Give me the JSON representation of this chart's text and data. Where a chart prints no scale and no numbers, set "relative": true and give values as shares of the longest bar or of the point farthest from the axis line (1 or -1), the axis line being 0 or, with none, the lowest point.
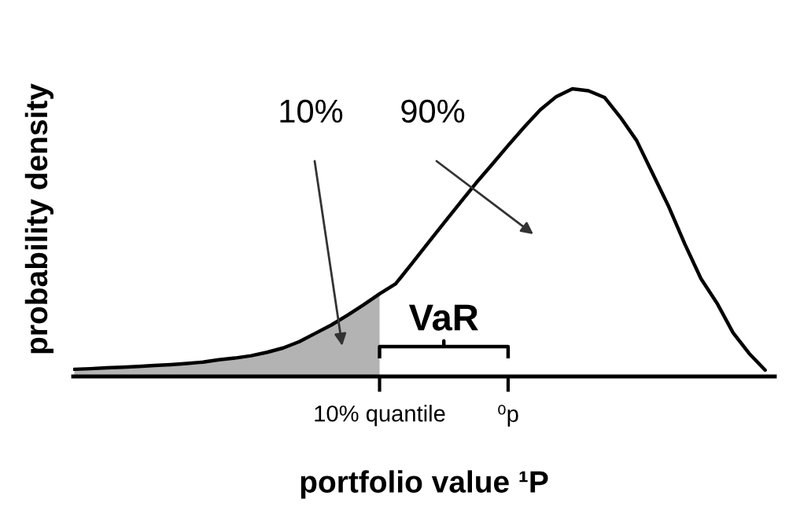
{
  "chart_data": {
    "type": "line",
    "relative": true,
    "xlabel": "portfolio value ¹P",
    "ylabel": "probability density",
    "categories": [
      null,
      null,
      null,
      null,
      null,
      null,
      null,
      null,
      null,
      null,
      null,
      null,
      null,
      null,
      null,
      null,
      null,
      null,
      null,
      "10% quantile",
      null,
      null,
      null,
      null,
      null,
      null,
      null,
      "⁰p",
      null,
      null,
      null,
      null,
      null,
      null,
      null,
      null,
      null,
      null,
      null,
      null,
      null,
      null,
      null,
      null
    ],
    "tick_labels": "x",
    "grid": false,
    "series": [
      {
        "type": "area",
        "color": "#b3b3b3",
        "values": [
          0.025,
          0.027,
          0.03,
          0.032,
          0.035,
          0.038,
          0.041,
          0.045,
          0.05,
          0.058,
          0.064,
          0.072,
          0.084,
          0.099,
          0.121,
          0.15,
          0.179,
          0.213,
          0.249,
          0.287,
          null,
          null,
          null,
          null,
          null,
          null,
          null,
          null,
          null,
          null,
          null,
          null,
          null,
          null,
          null,
          null,
          null,
          null,
          null,
          null,
          null,
          null,
          null,
          null
        ]
      },
      {
        "color": "#000000",
        "values": [
          0.025,
          0.027,
          0.03,
          0.032,
          0.035,
          0.038,
          0.041,
          0.045,
          0.05,
          0.058,
          0.064,
          0.072,
          0.084,
          0.099,
          0.121,
          0.15,
          0.179,
          0.213,
          0.249,
          0.287,
          0.322,
          0.392,
          0.463,
          0.533,
          0.603,
          0.672,
          0.737,
          0.803,
          0.867,
          0.927,
          0.973,
          1,
          0.993,
          0.97,
          0.9,
          0.82,
          0.705,
          0.59,
          0.46,
          0.34,
          0.255,
          0.152,
          0.08,
          0.022
        ]
      }
    ],
    "annotations": [
      "10%",
      "90%",
      "VaR"
    ]
  }
}
